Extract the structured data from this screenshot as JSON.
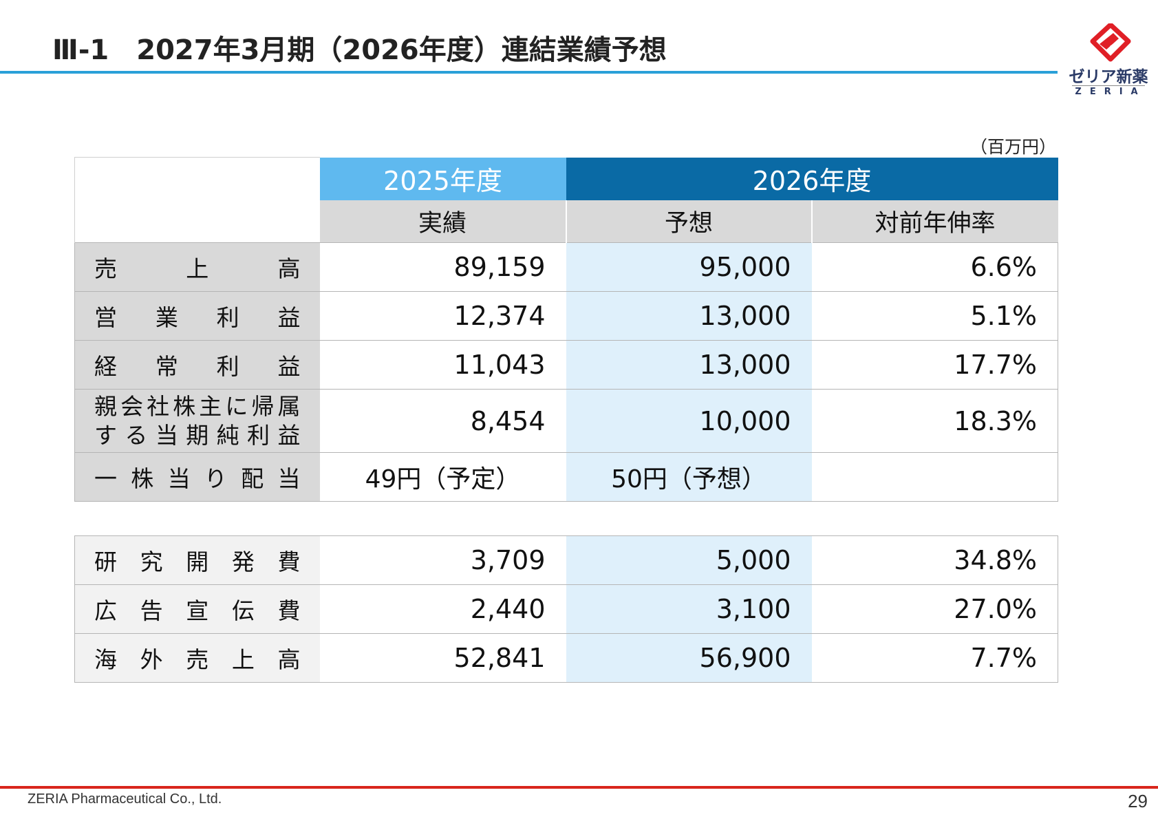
{
  "header": {
    "title": "Ⅲ-1　2027年3月期（2026年度）連結業績予想",
    "logo_jp": "ゼリア新薬",
    "logo_en": "ZERIA"
  },
  "unit": "（百万円）",
  "columns": {
    "year1": "2025年度",
    "year2": "2026年度",
    "sub1": "実績",
    "sub2": "予想",
    "sub3": "対前年伸率"
  },
  "table1": [
    {
      "label": [
        "売",
        "上",
        "高"
      ],
      "actual": "89,159",
      "forecast": "95,000",
      "growth": "6.6%"
    },
    {
      "label": [
        "営",
        "業",
        "利",
        "益"
      ],
      "actual": "12,374",
      "forecast": "13,000",
      "growth": "5.1%"
    },
    {
      "label": [
        "経",
        "常",
        "利",
        "益"
      ],
      "actual": "11,043",
      "forecast": "13,000",
      "growth": "17.7%"
    },
    {
      "label_line1": [
        "親",
        "会",
        "社",
        "株",
        "主",
        "に",
        "帰",
        "属"
      ],
      "label_line2": [
        "す",
        "る",
        "当",
        "期",
        "純",
        "利",
        "益"
      ],
      "actual": "8,454",
      "forecast": "10,000",
      "growth": "18.3%"
    },
    {
      "label": [
        "一",
        "株",
        "当",
        "り",
        "配",
        "当"
      ],
      "actual": "49円（予定）",
      "forecast": "50円（予想）",
      "growth": ""
    }
  ],
  "table2": [
    {
      "label": [
        "研",
        "究",
        "開",
        "発",
        "費"
      ],
      "actual": "3,709",
      "forecast": "5,000",
      "growth": "34.8%"
    },
    {
      "label": [
        "広",
        "告",
        "宣",
        "伝",
        "費"
      ],
      "actual": "2,440",
      "forecast": "3,100",
      "growth": "27.0%"
    },
    {
      "label": [
        "海",
        "外",
        "売",
        "上",
        "高"
      ],
      "actual": "52,841",
      "forecast": "56,900",
      "growth": "7.7%"
    }
  ],
  "footer": {
    "company": "ZERIA Pharmaceutical Co., Ltd.",
    "page": "29"
  },
  "colors": {
    "accent_line": "#2aa0d8",
    "header_2025": "#5fb9ef",
    "header_2026": "#0a6aa5",
    "forecast_col": "#dff0fb",
    "footer_line": "#d9261c",
    "logo_red": "#e01f26"
  }
}
